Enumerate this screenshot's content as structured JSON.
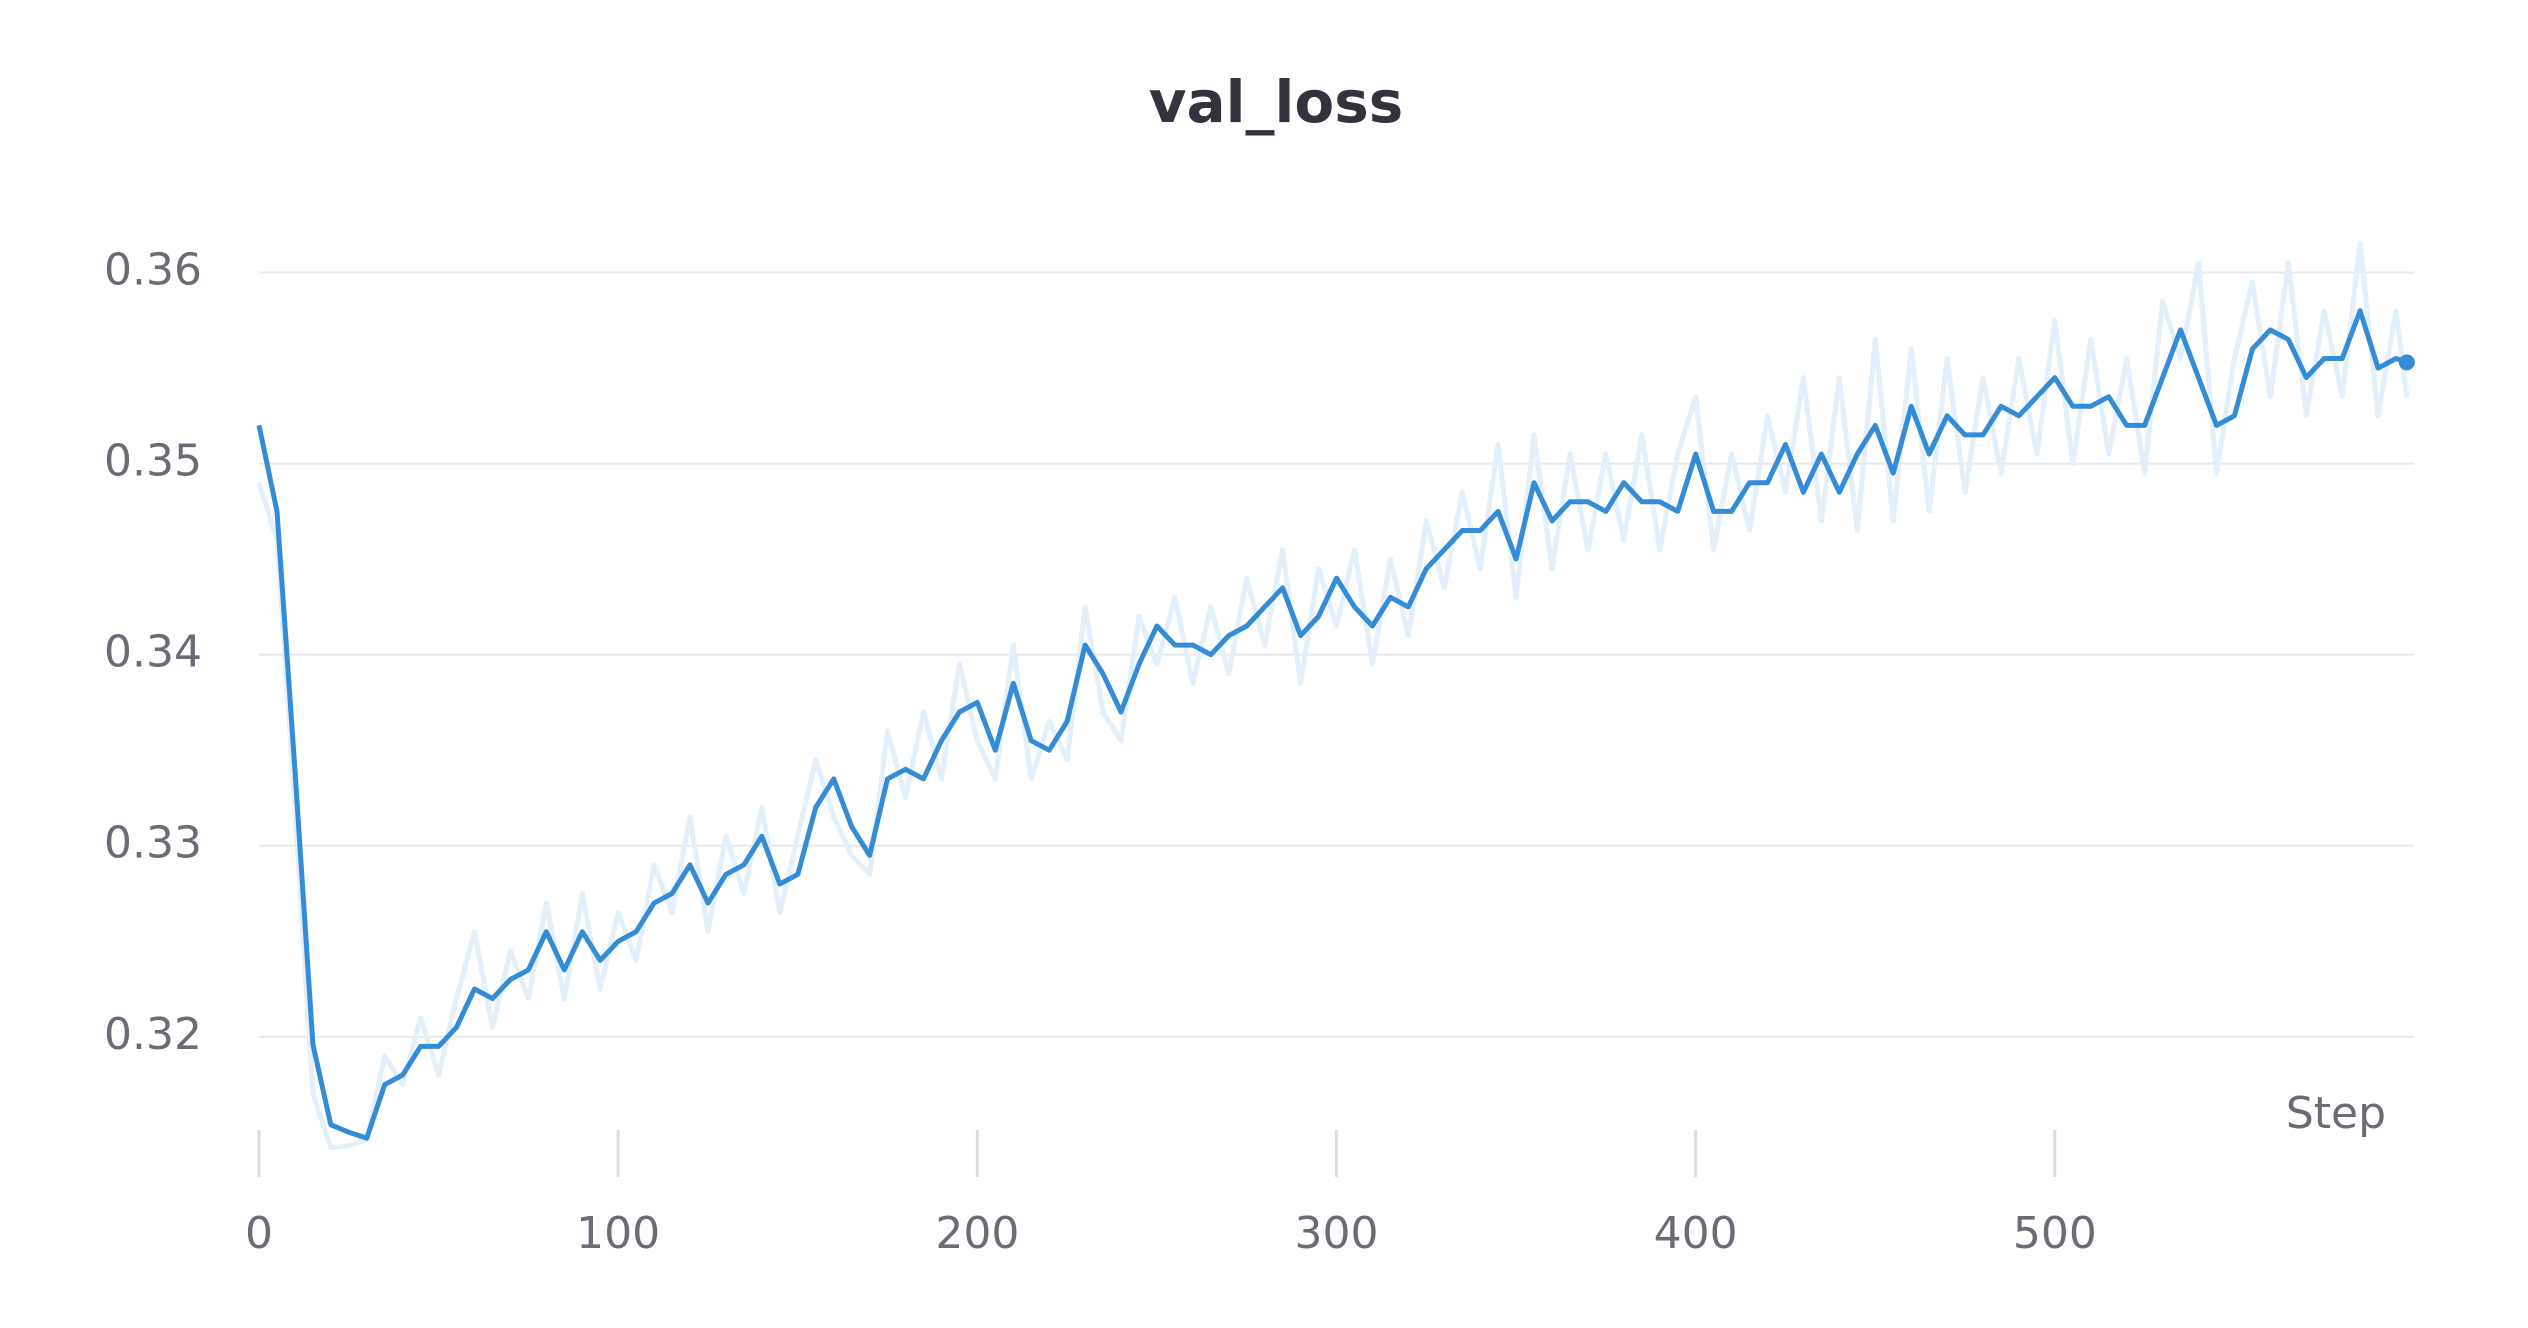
{
  "chart_data": {
    "type": "line",
    "title": "val_loss",
    "x_label": "Step",
    "x": [
      0,
      5,
      10,
      15,
      20,
      25,
      30,
      35,
      40,
      45,
      50,
      55,
      60,
      65,
      70,
      75,
      80,
      85,
      90,
      95,
      100,
      105,
      110,
      115,
      120,
      125,
      130,
      135,
      140,
      145,
      150,
      155,
      160,
      165,
      170,
      175,
      180,
      185,
      190,
      195,
      200,
      205,
      210,
      215,
      220,
      225,
      230,
      235,
      240,
      245,
      250,
      255,
      260,
      265,
      270,
      275,
      280,
      285,
      290,
      295,
      300,
      305,
      310,
      315,
      320,
      325,
      330,
      335,
      340,
      345,
      350,
      355,
      360,
      365,
      370,
      375,
      380,
      385,
      390,
      395,
      400,
      405,
      410,
      415,
      420,
      425,
      430,
      435,
      440,
      445,
      450,
      455,
      460,
      465,
      470,
      475,
      480,
      485,
      490,
      495,
      500,
      505,
      510,
      515,
      520,
      525,
      530,
      535,
      540,
      545,
      550,
      555,
      560,
      565,
      570,
      575,
      580,
      585,
      590,
      595,
      598
    ],
    "series": [
      {
        "color": "#e3effa",
        "values": [
          0.349,
          0.346,
          0.332,
          0.317,
          0.3142,
          0.3143,
          0.3146,
          0.319,
          0.3175,
          0.321,
          0.318,
          0.322,
          0.3255,
          0.3205,
          0.3245,
          0.322,
          0.327,
          0.322,
          0.3275,
          0.3225,
          0.3265,
          0.324,
          0.329,
          0.3265,
          0.3315,
          0.3255,
          0.3305,
          0.3275,
          0.332,
          0.3265,
          0.3305,
          0.3345,
          0.3315,
          0.3295,
          0.3285,
          0.336,
          0.3325,
          0.337,
          0.3335,
          0.3395,
          0.3355,
          0.3335,
          0.3405,
          0.3335,
          0.3365,
          0.3345,
          0.3425,
          0.337,
          0.3355,
          0.342,
          0.3395,
          0.343,
          0.3385,
          0.3425,
          0.339,
          0.344,
          0.3405,
          0.3455,
          0.3385,
          0.3445,
          0.3415,
          0.3455,
          0.3395,
          0.345,
          0.341,
          0.347,
          0.3435,
          0.3485,
          0.3445,
          0.351,
          0.343,
          0.3515,
          0.3445,
          0.3505,
          0.3455,
          0.3505,
          0.346,
          0.3515,
          0.3455,
          0.3505,
          0.3535,
          0.3455,
          0.3505,
          0.3465,
          0.3525,
          0.3485,
          0.3545,
          0.347,
          0.3545,
          0.3465,
          0.3565,
          0.347,
          0.356,
          0.3475,
          0.3555,
          0.3485,
          0.3545,
          0.3495,
          0.3555,
          0.3505,
          0.3575,
          0.35,
          0.3565,
          0.3505,
          0.3555,
          0.3495,
          0.3585,
          0.3555,
          0.3605,
          0.3495,
          0.3555,
          0.3595,
          0.3535,
          0.3605,
          0.3525,
          0.358,
          0.3535,
          0.3615,
          0.3525,
          0.358,
          0.3535
        ]
      },
      {
        "color": "#358cd6",
        "values": [
          0.352,
          0.3475,
          0.334,
          0.3196,
          0.3154,
          0.315,
          0.3147,
          0.3175,
          0.318,
          0.3195,
          0.3195,
          0.3205,
          0.3225,
          0.322,
          0.323,
          0.3235,
          0.3255,
          0.3235,
          0.3255,
          0.324,
          0.325,
          0.3255,
          0.327,
          0.3275,
          0.329,
          0.327,
          0.3285,
          0.329,
          0.3305,
          0.328,
          0.3285,
          0.332,
          0.3335,
          0.331,
          0.3295,
          0.3335,
          0.334,
          0.3335,
          0.3355,
          0.337,
          0.3375,
          0.335,
          0.3385,
          0.3355,
          0.335,
          0.3365,
          0.3405,
          0.339,
          0.337,
          0.3395,
          0.3415,
          0.3405,
          0.3405,
          0.34,
          0.341,
          0.3415,
          0.3425,
          0.3435,
          0.341,
          0.342,
          0.344,
          0.3425,
          0.3415,
          0.343,
          0.3425,
          0.3445,
          0.3455,
          0.3465,
          0.3465,
          0.3475,
          0.345,
          0.349,
          0.347,
          0.348,
          0.348,
          0.3475,
          0.349,
          0.348,
          0.348,
          0.3475,
          0.3505,
          0.3475,
          0.3475,
          0.349,
          0.349,
          0.351,
          0.3485,
          0.3505,
          0.3485,
          0.3505,
          0.352,
          0.3495,
          0.353,
          0.3505,
          0.3525,
          0.3515,
          0.3515,
          0.353,
          0.3525,
          0.3535,
          0.3545,
          0.353,
          0.353,
          0.3535,
          0.352,
          0.352,
          0.3545,
          0.357,
          0.3545,
          0.352,
          0.3525,
          0.356,
          0.357,
          0.3565,
          0.3545,
          0.3555,
          0.3555,
          0.358,
          0.355,
          0.3555,
          0.3553
        ]
      }
    ],
    "xlim": [
      0,
      600
    ],
    "xticks": [
      0,
      100,
      200,
      300,
      400,
      500
    ],
    "ylim": [
      0.3135,
      0.365
    ],
    "yticks": [
      0.32,
      0.33,
      0.34,
      0.35,
      0.36
    ],
    "grid": true
  }
}
